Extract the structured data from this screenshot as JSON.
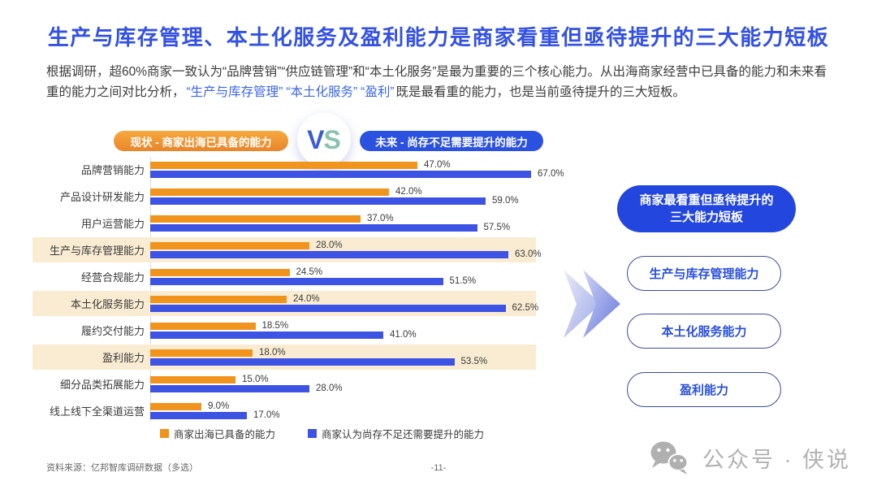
{
  "page": {
    "title": "生产与库存管理、本土化服务及盈利能力是商家看重但亟待提升的三大能力短板",
    "intro_segments": [
      {
        "text": "根据调研，超60%商家一致认为“品牌营销”“供应链管理”和“本土化服务”是最为重要的三个核心能力。从出海商家经营中已具备的能力和未来看重的能力之间对比分析，",
        "hl": false
      },
      {
        "text": "“生产与库存管理”",
        "hl": true
      },
      {
        "text": "“本土化服务”",
        "hl": true
      },
      {
        "text": "“盈利”",
        "hl": true
      },
      {
        "text": "既是最看重的能力，也是当前亟待提升的三大短板。",
        "hl": false
      }
    ]
  },
  "comparison": {
    "current_badge": "现状 - 商家出海已具备的能力",
    "future_badge": "未来 - 尚存不足需要提升的能力",
    "vs_v": "V",
    "vs_s": "S"
  },
  "chart_data": {
    "type": "bar",
    "orientation": "horizontal",
    "categories": [
      "品牌营销能力",
      "产品设计研发能力",
      "用户运营能力",
      "生产与库存管理能力",
      "经营合规能力",
      "本土化服务能力",
      "履约交付能力",
      "盈利能力",
      "细分品类拓展能力",
      "线上线下全渠道运营"
    ],
    "series": [
      {
        "name": "商家出海已具备的能力",
        "color": "#F0941D",
        "values": [
          47.0,
          42.0,
          37.0,
          28.0,
          24.5,
          24.0,
          18.5,
          18.0,
          15.0,
          9.0
        ]
      },
      {
        "name": "商家认为尚存不足还需要提升的能力",
        "color": "#3D53E3",
        "values": [
          67.0,
          59.0,
          57.5,
          63.0,
          51.5,
          62.5,
          41.0,
          53.5,
          28.0,
          17.0
        ]
      }
    ],
    "value_suffix": "%",
    "highlighted_categories": [
      "生产与库存管理能力",
      "本土化服务能力",
      "盈利能力"
    ],
    "highlight_color": "#FAECD2",
    "xlim": [
      0,
      70
    ],
    "grid": false,
    "legend_position": "bottom"
  },
  "side_panel": {
    "header_lines": [
      "商家最看重但亟待提升的",
      "三大能力短板"
    ],
    "pills": [
      "生产与库存管理能力",
      "本土化服务能力",
      "盈利能力"
    ]
  },
  "footer": {
    "source": "资料来源：亿邦智库调研数据（多选）",
    "page_number": "-11-",
    "wechat_label": "公众号 · 侠说"
  },
  "colors": {
    "title_blue": "#3351E3",
    "accent_blue": "#2B51E0",
    "accent_orange": "#F0941D",
    "bar_blue": "#3D53E3",
    "highlight_cream": "#FAECD2"
  }
}
